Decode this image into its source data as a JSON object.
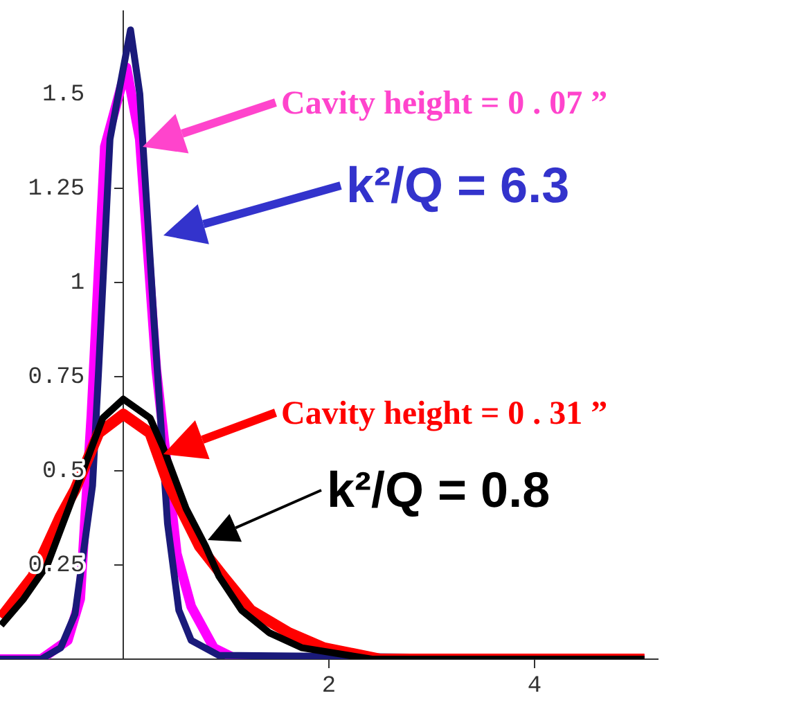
{
  "chart_data": {
    "type": "line",
    "xlim": [
      -1.2,
      5.2
    ],
    "xticks": [
      2,
      4
    ],
    "ylim": [
      0,
      1.72
    ],
    "yticks": [
      0.25,
      0.5,
      0.75,
      1,
      1.25,
      1.5
    ],
    "grid": false,
    "legend": false,
    "marker": "none",
    "line_style": "solid",
    "series": [
      {
        "color": "#ff00ff",
        "x": [
          -1.2,
          -0.8,
          -0.54,
          -0.42,
          -0.31,
          -0.18,
          0.03,
          0.16,
          0.32,
          0.52,
          0.66,
          0.88,
          1.1,
          5.07
        ],
        "values": [
          0,
          0,
          0.05,
          0.16,
          0.65,
          1.36,
          1.57,
          1.38,
          0.77,
          0.28,
          0.14,
          0.03,
          0,
          0
        ]
      },
      {
        "color": "#1a1a7a",
        "x": [
          -1.2,
          -0.8,
          -0.61,
          -0.47,
          -0.3,
          -0.24,
          -0.13,
          0.07,
          0.16,
          0.3,
          0.43,
          0.54,
          0.66,
          0.93,
          5.07
        ],
        "values": [
          0,
          0,
          0.03,
          0.12,
          0.46,
          0.77,
          1.38,
          1.67,
          1.5,
          0.89,
          0.36,
          0.13,
          0.05,
          0.01,
          0
        ]
      },
      {
        "color": "#ff0000",
        "x": [
          -1.19,
          -0.88,
          -0.61,
          -0.47,
          -0.24,
          0,
          0.26,
          0.43,
          0.74,
          0.97,
          1.24,
          1.61,
          1.95,
          2.5,
          5.07
        ],
        "values": [
          0.11,
          0.22,
          0.38,
          0.45,
          0.6,
          0.65,
          0.6,
          0.47,
          0.3,
          0.22,
          0.13,
          0.07,
          0.03,
          0,
          0
        ]
      },
      {
        "color": "#000000",
        "x": [
          -1.19,
          -0.97,
          -0.74,
          -0.56,
          -0.38,
          -0.2,
          0,
          0.26,
          0.39,
          0.61,
          0.8,
          0.93,
          1.15,
          1.42,
          1.74,
          2.42,
          5.07
        ],
        "values": [
          0.09,
          0.16,
          0.25,
          0.38,
          0.51,
          0.64,
          0.69,
          0.64,
          0.56,
          0.4,
          0.3,
          0.22,
          0.13,
          0.07,
          0.03,
          0,
          0
        ]
      }
    ],
    "annotations": [
      "Cavity height = 0 . 07 ”",
      "k²/Q = 6.3",
      "Cavity height = 0 . 31 ”",
      "k²/Q = 0.8"
    ]
  }
}
